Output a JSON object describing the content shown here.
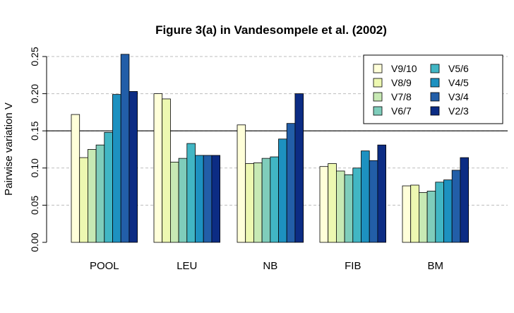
{
  "chart_data": {
    "type": "bar",
    "title": "Figure 3(a) in Vandesompele et al. (2002)",
    "xlabel": "",
    "ylabel": "Pairwise variation V",
    "ylim": [
      0,
      0.25
    ],
    "yticks": [
      "0.00",
      "0.05",
      "0.10",
      "0.15",
      "0.20",
      "0.25"
    ],
    "grid": "horizontal dashed",
    "reference_line": 0.15,
    "legend_position": "top-right",
    "categories": [
      "POOL",
      "LEU",
      "NB",
      "FIB",
      "BM"
    ],
    "series": [
      {
        "name": "V9/10",
        "color": "#ffffd9",
        "values": [
          0.172,
          0.2,
          0.158,
          0.102,
          0.076
        ]
      },
      {
        "name": "V8/9",
        "color": "#edf8b1",
        "values": [
          0.114,
          0.193,
          0.106,
          0.106,
          0.077
        ]
      },
      {
        "name": "V7/8",
        "color": "#c7e9b4",
        "values": [
          0.125,
          0.108,
          0.107,
          0.096,
          0.067
        ]
      },
      {
        "name": "V6/7",
        "color": "#7fcdbb",
        "values": [
          0.131,
          0.113,
          0.113,
          0.091,
          0.069
        ]
      },
      {
        "name": "V5/6",
        "color": "#41b6c4",
        "values": [
          0.148,
          0.133,
          0.115,
          0.1,
          0.081
        ]
      },
      {
        "name": "V4/5",
        "color": "#1d91c0",
        "values": [
          0.199,
          0.117,
          0.139,
          0.123,
          0.084
        ]
      },
      {
        "name": "V3/4",
        "color": "#225ea8",
        "values": [
          0.253,
          0.117,
          0.16,
          0.11,
          0.097
        ]
      },
      {
        "name": "V2/3",
        "color": "#0c2c84",
        "values": [
          0.203,
          0.117,
          0.2,
          0.131,
          0.114
        ]
      }
    ]
  }
}
